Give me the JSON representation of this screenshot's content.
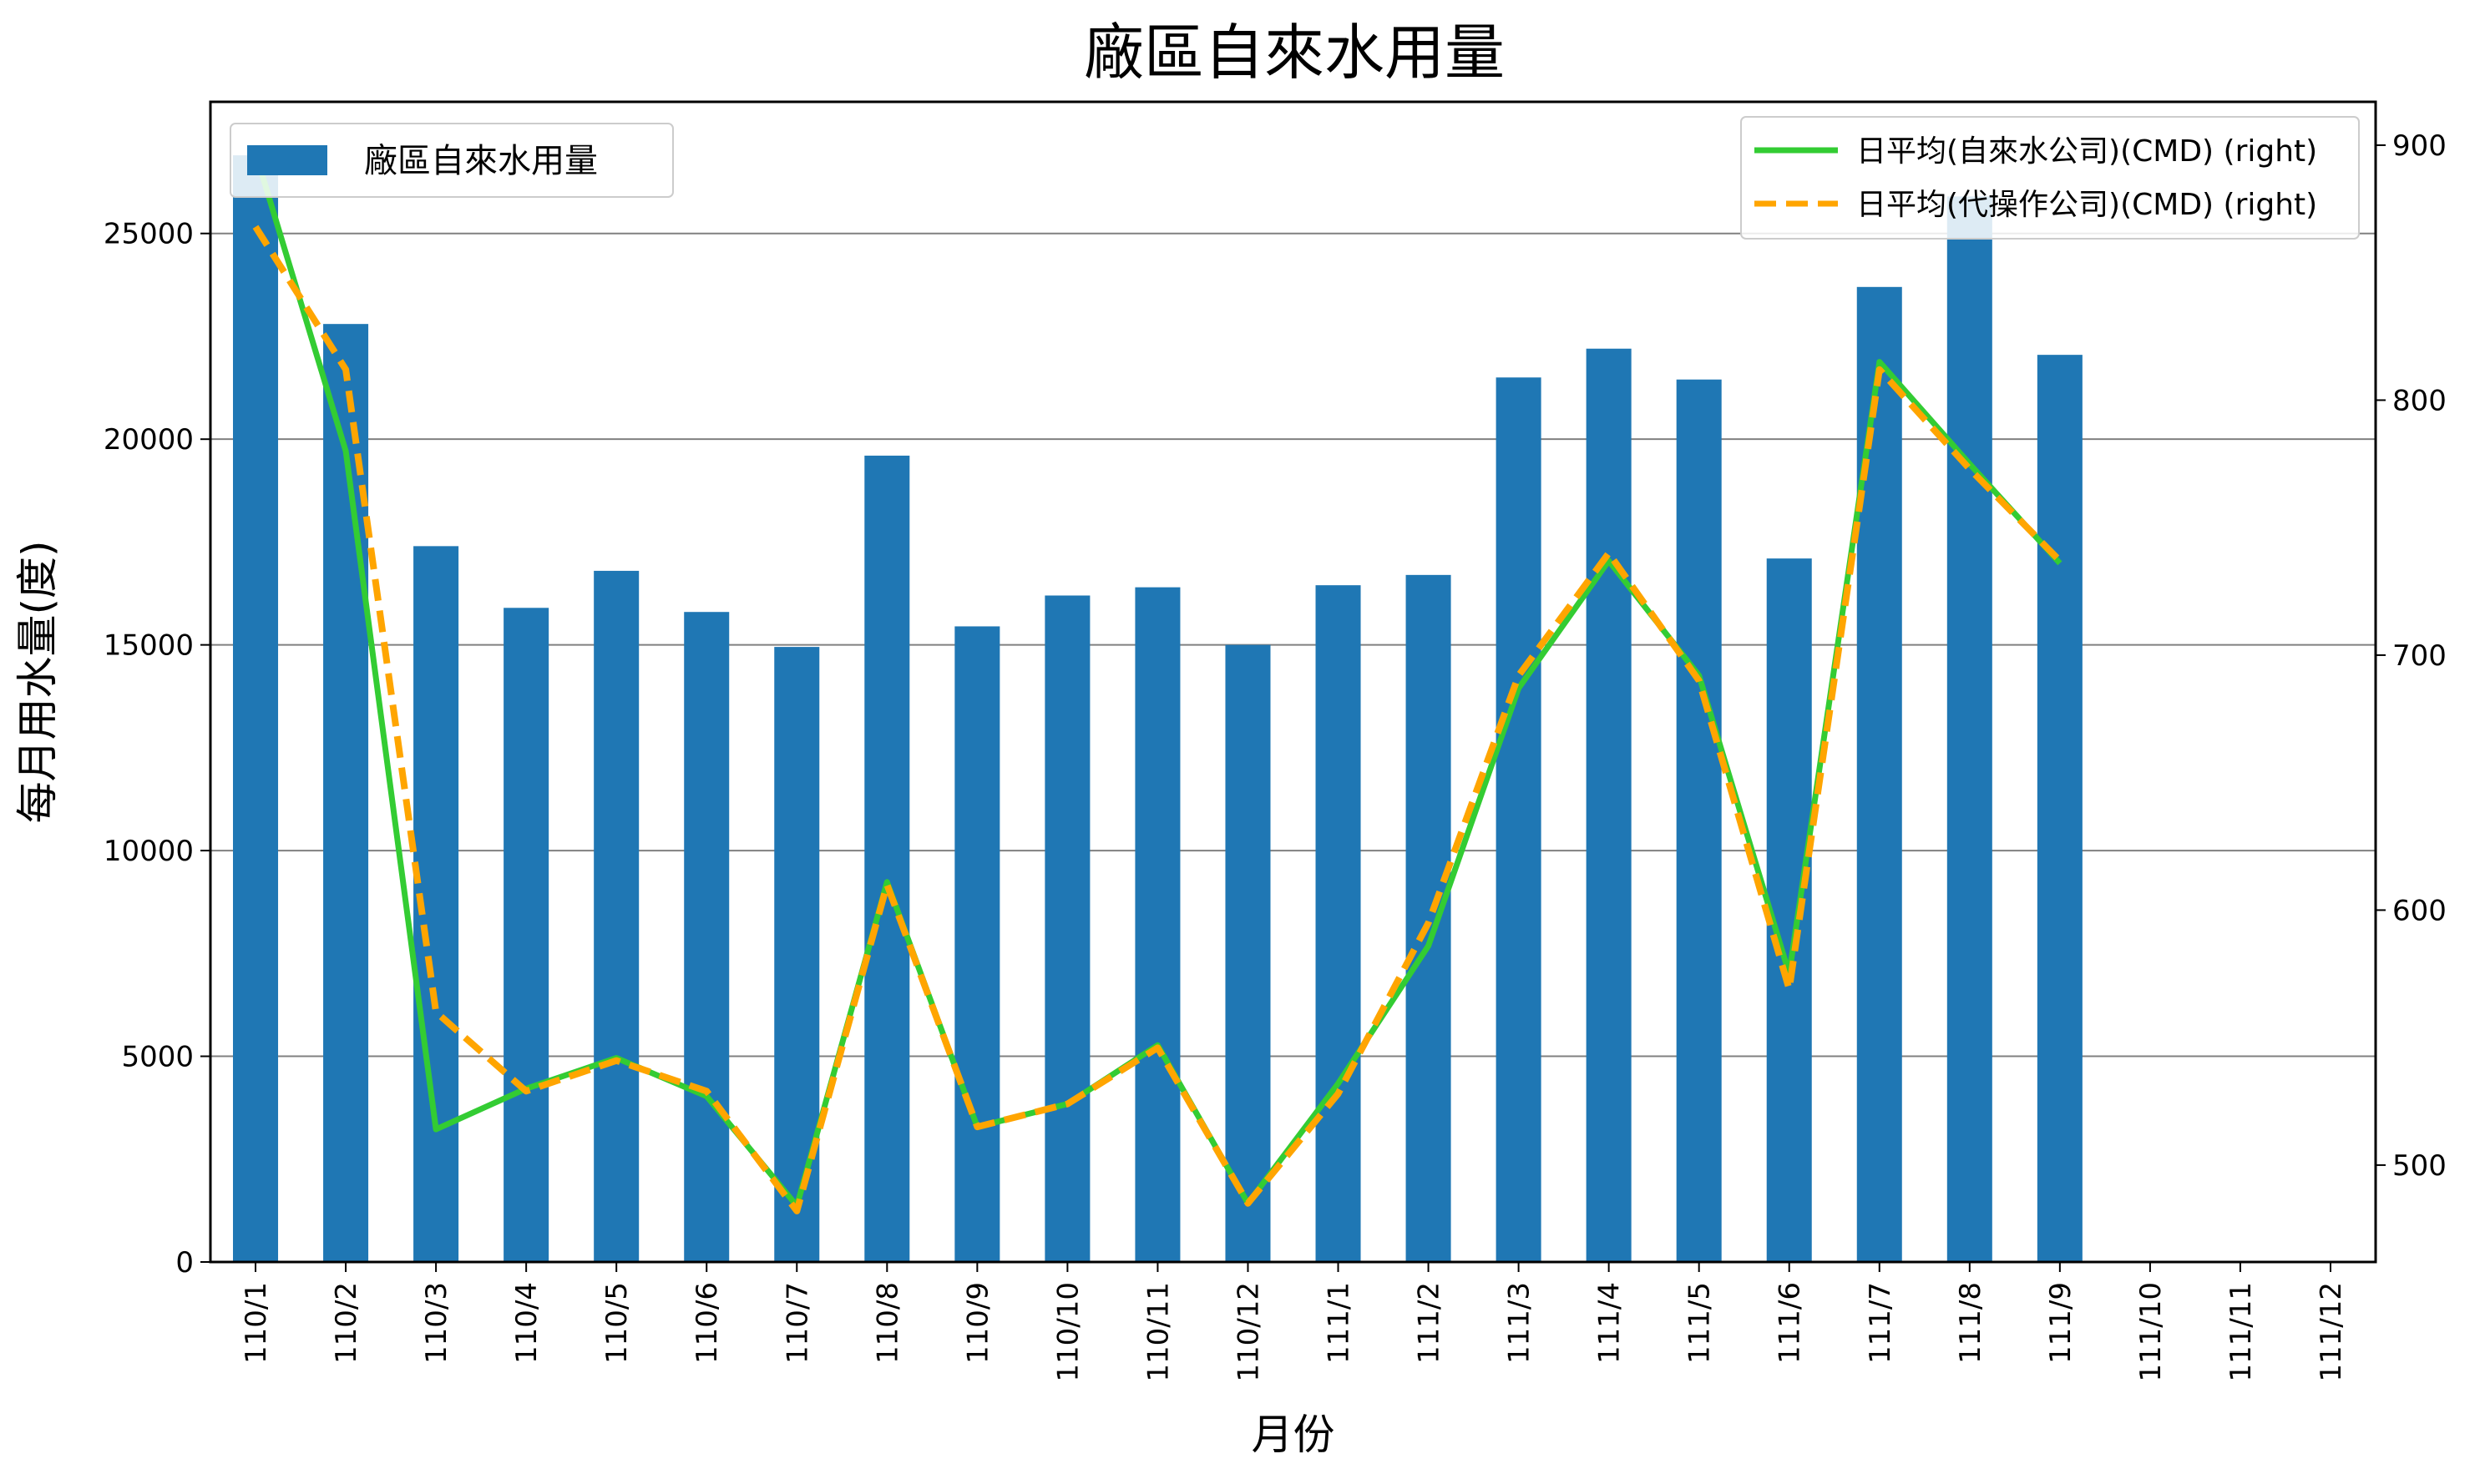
{
  "chart_data": {
    "type": "bar",
    "title": "廠區自來水用量",
    "xlabel": "月份",
    "ylabel": "每月用水量(度)",
    "categories": [
      "110/1",
      "110/2",
      "110/3",
      "110/4",
      "110/5",
      "110/6",
      "110/7",
      "110/8",
      "110/9",
      "110/10",
      "110/11",
      "110/12",
      "111/1",
      "111/2",
      "111/3",
      "111/4",
      "111/5",
      "111/6",
      "111/7",
      "111/8",
      "111/9",
      "111/10",
      "111/11",
      "111/12"
    ],
    "ylim": [
      0,
      28200
    ],
    "yticks": [
      0,
      5000,
      10000,
      15000,
      20000,
      25000
    ],
    "y2lim": [
      462,
      917
    ],
    "y2ticks": [
      500,
      600,
      700,
      800,
      900
    ],
    "grid": true,
    "series": [
      {
        "name": "廠區自來水用量",
        "axis": "left",
        "kind": "bar",
        "color": "#1f77b4",
        "values": [
          26900,
          22800,
          17400,
          15900,
          16800,
          15800,
          14950,
          19600,
          15450,
          16200,
          16400,
          15000,
          16450,
          16700,
          21500,
          22200,
          21450,
          17100,
          23700,
          25900,
          22050,
          null,
          null,
          null
        ]
      },
      {
        "name": "日平均(自來水公司)(CMD) (right)",
        "axis": "right",
        "kind": "line",
        "style": "solid",
        "color": "#33cc33",
        "values": [
          897,
          780,
          514,
          530,
          542,
          527,
          484,
          611,
          515,
          524,
          547,
          485,
          532,
          586,
          687,
          737,
          692,
          575,
          815,
          775,
          736,
          null,
          null,
          null
        ]
      },
      {
        "name": "日平均(代操作公司)(CMD) (right)",
        "axis": "right",
        "kind": "line",
        "style": "dashed",
        "color": "#ffa500",
        "values": [
          868,
          812,
          560,
          529,
          541,
          529,
          482,
          610,
          515,
          524,
          546,
          485,
          528,
          595,
          692,
          740,
          690,
          569,
          812,
          773,
          737,
          null,
          null,
          null
        ]
      }
    ],
    "legend": {
      "bar_placement": "upper left",
      "line_placement": "upper right"
    }
  }
}
